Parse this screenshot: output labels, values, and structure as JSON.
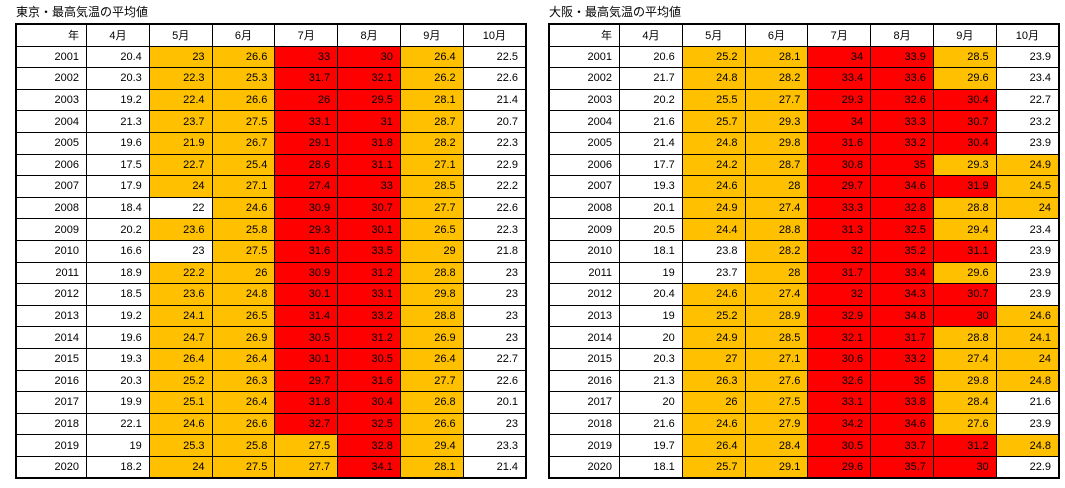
{
  "colors": {
    "white": "#FFFFFF",
    "orange": "#FFC000",
    "red": "#FF0000",
    "border": "#000000",
    "text": "#000000"
  },
  "fill_legend": {
    "w": "white",
    "o": "orange",
    "r": "red"
  },
  "chart_data": [
    {
      "type": "table",
      "title": "東京・最高気温の平均値",
      "columns": [
        "年",
        "4月",
        "5月",
        "6月",
        "7月",
        "8月",
        "9月",
        "10月"
      ],
      "rows": [
        {
          "year": "2001",
          "values": [
            "20.4",
            "23",
            "26.6",
            "33",
            "30",
            "26.4",
            "22.5"
          ],
          "fills": "woorrow"
        },
        {
          "year": "2002",
          "values": [
            "20.3",
            "22.3",
            "25.3",
            "31.7",
            "32.1",
            "26.2",
            "22.6"
          ],
          "fills": "woorrow"
        },
        {
          "year": "2003",
          "values": [
            "19.2",
            "22.4",
            "26.6",
            "26",
            "29.5",
            "28.1",
            "21.4"
          ],
          "fills": "woorrow"
        },
        {
          "year": "2004",
          "values": [
            "21.3",
            "23.7",
            "27.5",
            "33.1",
            "31",
            "28.7",
            "20.7"
          ],
          "fills": "woorrow"
        },
        {
          "year": "2005",
          "values": [
            "19.6",
            "21.9",
            "26.7",
            "29.1",
            "31.8",
            "28.2",
            "22.3"
          ],
          "fills": "woorrow"
        },
        {
          "year": "2006",
          "values": [
            "17.5",
            "22.7",
            "25.4",
            "28.6",
            "31.1",
            "27.1",
            "22.9"
          ],
          "fills": "woorrow"
        },
        {
          "year": "2007",
          "values": [
            "17.9",
            "24",
            "27.1",
            "27.4",
            "33",
            "28.5",
            "22.2"
          ],
          "fills": "woorrow"
        },
        {
          "year": "2008",
          "values": [
            "18.4",
            "22",
            "24.6",
            "30.9",
            "30.7",
            "27.7",
            "22.6"
          ],
          "fills": "wworrow"
        },
        {
          "year": "2009",
          "values": [
            "20.2",
            "23.6",
            "25.8",
            "29.3",
            "30.1",
            "26.5",
            "22.3"
          ],
          "fills": "woorrow"
        },
        {
          "year": "2010",
          "values": [
            "16.6",
            "23",
            "27.5",
            "31.6",
            "33.5",
            "29",
            "21.8"
          ],
          "fills": "wworrow"
        },
        {
          "year": "2011",
          "values": [
            "18.9",
            "22.2",
            "26",
            "30.9",
            "31.2",
            "28.8",
            "23"
          ],
          "fills": "woorrow"
        },
        {
          "year": "2012",
          "values": [
            "18.5",
            "23.6",
            "24.8",
            "30.1",
            "33.1",
            "29.8",
            "23"
          ],
          "fills": "woorrow"
        },
        {
          "year": "2013",
          "values": [
            "19.2",
            "24.1",
            "26.5",
            "31.4",
            "33.2",
            "28.8",
            "23"
          ],
          "fills": "woorrow"
        },
        {
          "year": "2014",
          "values": [
            "19.6",
            "24.7",
            "26.9",
            "30.5",
            "31.2",
            "26.9",
            "23"
          ],
          "fills": "woorrow"
        },
        {
          "year": "2015",
          "values": [
            "19.3",
            "26.4",
            "26.4",
            "30.1",
            "30.5",
            "26.4",
            "22.7"
          ],
          "fills": "woorrow"
        },
        {
          "year": "2016",
          "values": [
            "20.3",
            "25.2",
            "26.3",
            "29.7",
            "31.6",
            "27.7",
            "22.6"
          ],
          "fills": "woorrow"
        },
        {
          "year": "2017",
          "values": [
            "19.9",
            "25.1",
            "26.4",
            "31.8",
            "30.4",
            "26.8",
            "20.1"
          ],
          "fills": "woorrow"
        },
        {
          "year": "2018",
          "values": [
            "22.1",
            "24.6",
            "26.6",
            "32.7",
            "32.5",
            "26.6",
            "23"
          ],
          "fills": "woorrow"
        },
        {
          "year": "2019",
          "values": [
            "19",
            "25.3",
            "25.8",
            "27.5",
            "32.8",
            "29.4",
            "23.3"
          ],
          "fills": "wooorow"
        },
        {
          "year": "2020",
          "values": [
            "18.2",
            "24",
            "27.5",
            "27.7",
            "34.1",
            "28.1",
            "21.4"
          ],
          "fills": "wooorow"
        }
      ]
    },
    {
      "type": "table",
      "title": "大阪・最高気温の平均値",
      "columns": [
        "年",
        "4月",
        "5月",
        "6月",
        "7月",
        "8月",
        "9月",
        "10月"
      ],
      "rows": [
        {
          "year": "2001",
          "values": [
            "20.6",
            "25.2",
            "28.1",
            "34",
            "33.9",
            "28.5",
            "23.9"
          ],
          "fills": "woorrow"
        },
        {
          "year": "2002",
          "values": [
            "21.7",
            "24.8",
            "28.2",
            "33.4",
            "33.6",
            "29.6",
            "23.4"
          ],
          "fills": "woorrow"
        },
        {
          "year": "2003",
          "values": [
            "20.2",
            "25.5",
            "27.7",
            "29.3",
            "32.6",
            "30.4",
            "22.7"
          ],
          "fills": "woorrrw"
        },
        {
          "year": "2004",
          "values": [
            "21.6",
            "25.7",
            "29.3",
            "34",
            "33.3",
            "30.7",
            "23.2"
          ],
          "fills": "woorrrw"
        },
        {
          "year": "2005",
          "values": [
            "21.4",
            "24.8",
            "29.8",
            "31.6",
            "33.2",
            "30.4",
            "23.9"
          ],
          "fills": "woorrrw"
        },
        {
          "year": "2006",
          "values": [
            "17.7",
            "24.2",
            "28.7",
            "30.8",
            "35",
            "29.3",
            "24.9"
          ],
          "fills": "woorroo"
        },
        {
          "year": "2007",
          "values": [
            "19.3",
            "24.6",
            "28",
            "29.7",
            "34.6",
            "31.9",
            "24.5"
          ],
          "fills": "woorrro"
        },
        {
          "year": "2008",
          "values": [
            "20.1",
            "24.9",
            "27.4",
            "33.3",
            "32.8",
            "28.8",
            "24"
          ],
          "fills": "woorroo"
        },
        {
          "year": "2009",
          "values": [
            "20.5",
            "24.4",
            "28.8",
            "31.3",
            "32.5",
            "29.4",
            "23.4"
          ],
          "fills": "woorrow"
        },
        {
          "year": "2010",
          "values": [
            "18.1",
            "23.8",
            "28.2",
            "32",
            "35.2",
            "31.1",
            "23.9"
          ],
          "fills": "wworrrw"
        },
        {
          "year": "2011",
          "values": [
            "19",
            "23.7",
            "28",
            "31.7",
            "33.4",
            "29.6",
            "23.9"
          ],
          "fills": "wworrow"
        },
        {
          "year": "2012",
          "values": [
            "20.4",
            "24.6",
            "27.4",
            "32",
            "34.3",
            "30.7",
            "23.9"
          ],
          "fills": "woorrrw"
        },
        {
          "year": "2013",
          "values": [
            "19",
            "25.2",
            "28.9",
            "32.9",
            "34.8",
            "30",
            "24.6"
          ],
          "fills": "woorrro"
        },
        {
          "year": "2014",
          "values": [
            "20",
            "24.9",
            "28.5",
            "32.1",
            "31.7",
            "28.8",
            "24.1"
          ],
          "fills": "woorroo"
        },
        {
          "year": "2015",
          "values": [
            "20.3",
            "27",
            "27.1",
            "30.6",
            "33.2",
            "27.4",
            "24"
          ],
          "fills": "woorroo"
        },
        {
          "year": "2016",
          "values": [
            "21.3",
            "26.3",
            "27.6",
            "32.6",
            "35",
            "29.8",
            "24.8"
          ],
          "fills": "woorroo"
        },
        {
          "year": "2017",
          "values": [
            "20",
            "26",
            "27.5",
            "33.1",
            "33.8",
            "28.4",
            "21.6"
          ],
          "fills": "woorrow"
        },
        {
          "year": "2018",
          "values": [
            "21.6",
            "24.6",
            "27.9",
            "34.2",
            "34.6",
            "27.6",
            "23.9"
          ],
          "fills": "woorrow"
        },
        {
          "year": "2019",
          "values": [
            "19.7",
            "26.4",
            "28.4",
            "30.5",
            "33.7",
            "31.2",
            "24.8"
          ],
          "fills": "woorrro"
        },
        {
          "year": "2020",
          "values": [
            "18.1",
            "25.7",
            "29.1",
            "29.6",
            "35.7",
            "30",
            "22.9"
          ],
          "fills": "woorrrw"
        }
      ]
    }
  ]
}
